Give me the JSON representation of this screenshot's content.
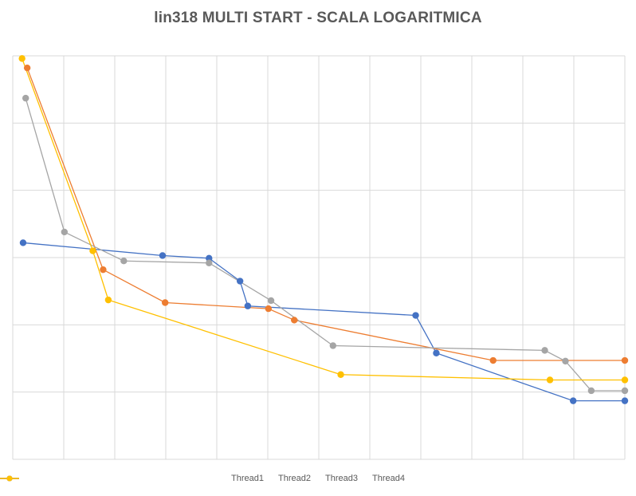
{
  "chart_data": {
    "type": "line",
    "title": "lin318 MULTI START - SCALA LOGARITMICA",
    "xlabel": "",
    "ylabel": "",
    "grid": true,
    "legend_position": "bottom",
    "series": [
      {
        "name": "Thread1",
        "color": "#4472C4",
        "points": [
          [
            0.2,
            3.22
          ],
          [
            2.9,
            3.03
          ],
          [
            3.8,
            2.99
          ],
          [
            4.4,
            2.65
          ],
          [
            4.55,
            2.28
          ],
          [
            7.8,
            2.14
          ],
          [
            8.2,
            1.58
          ],
          [
            10.85,
            0.87
          ],
          [
            11.85,
            0.87
          ]
        ]
      },
      {
        "name": "Thread2",
        "color": "#ED7D31",
        "points": [
          [
            0.28,
            5.82
          ],
          [
            1.75,
            2.82
          ],
          [
            2.95,
            2.33
          ],
          [
            4.95,
            2.24
          ],
          [
            5.45,
            2.07
          ],
          [
            9.3,
            1.47
          ],
          [
            11.85,
            1.47
          ]
        ]
      },
      {
        "name": "Thread3",
        "color": "#A5A5A5",
        "points": [
          [
            0.25,
            5.37
          ],
          [
            1.0,
            3.38
          ],
          [
            2.15,
            2.95
          ],
          [
            3.8,
            2.92
          ],
          [
            5.0,
            2.36
          ],
          [
            6.2,
            1.69
          ],
          [
            10.3,
            1.62
          ],
          [
            10.7,
            1.46
          ],
          [
            11.2,
            1.02
          ],
          [
            11.85,
            1.02
          ]
        ]
      },
      {
        "name": "Thread4",
        "color": "#FFC000",
        "points": [
          [
            0.18,
            5.96
          ],
          [
            1.55,
            3.1
          ],
          [
            1.85,
            2.37
          ],
          [
            6.35,
            1.26
          ],
          [
            10.4,
            1.18
          ],
          [
            11.85,
            1.18
          ]
        ]
      }
    ],
    "xlim": [
      0,
      11.85
    ],
    "ylim": [
      0,
      6
    ]
  }
}
